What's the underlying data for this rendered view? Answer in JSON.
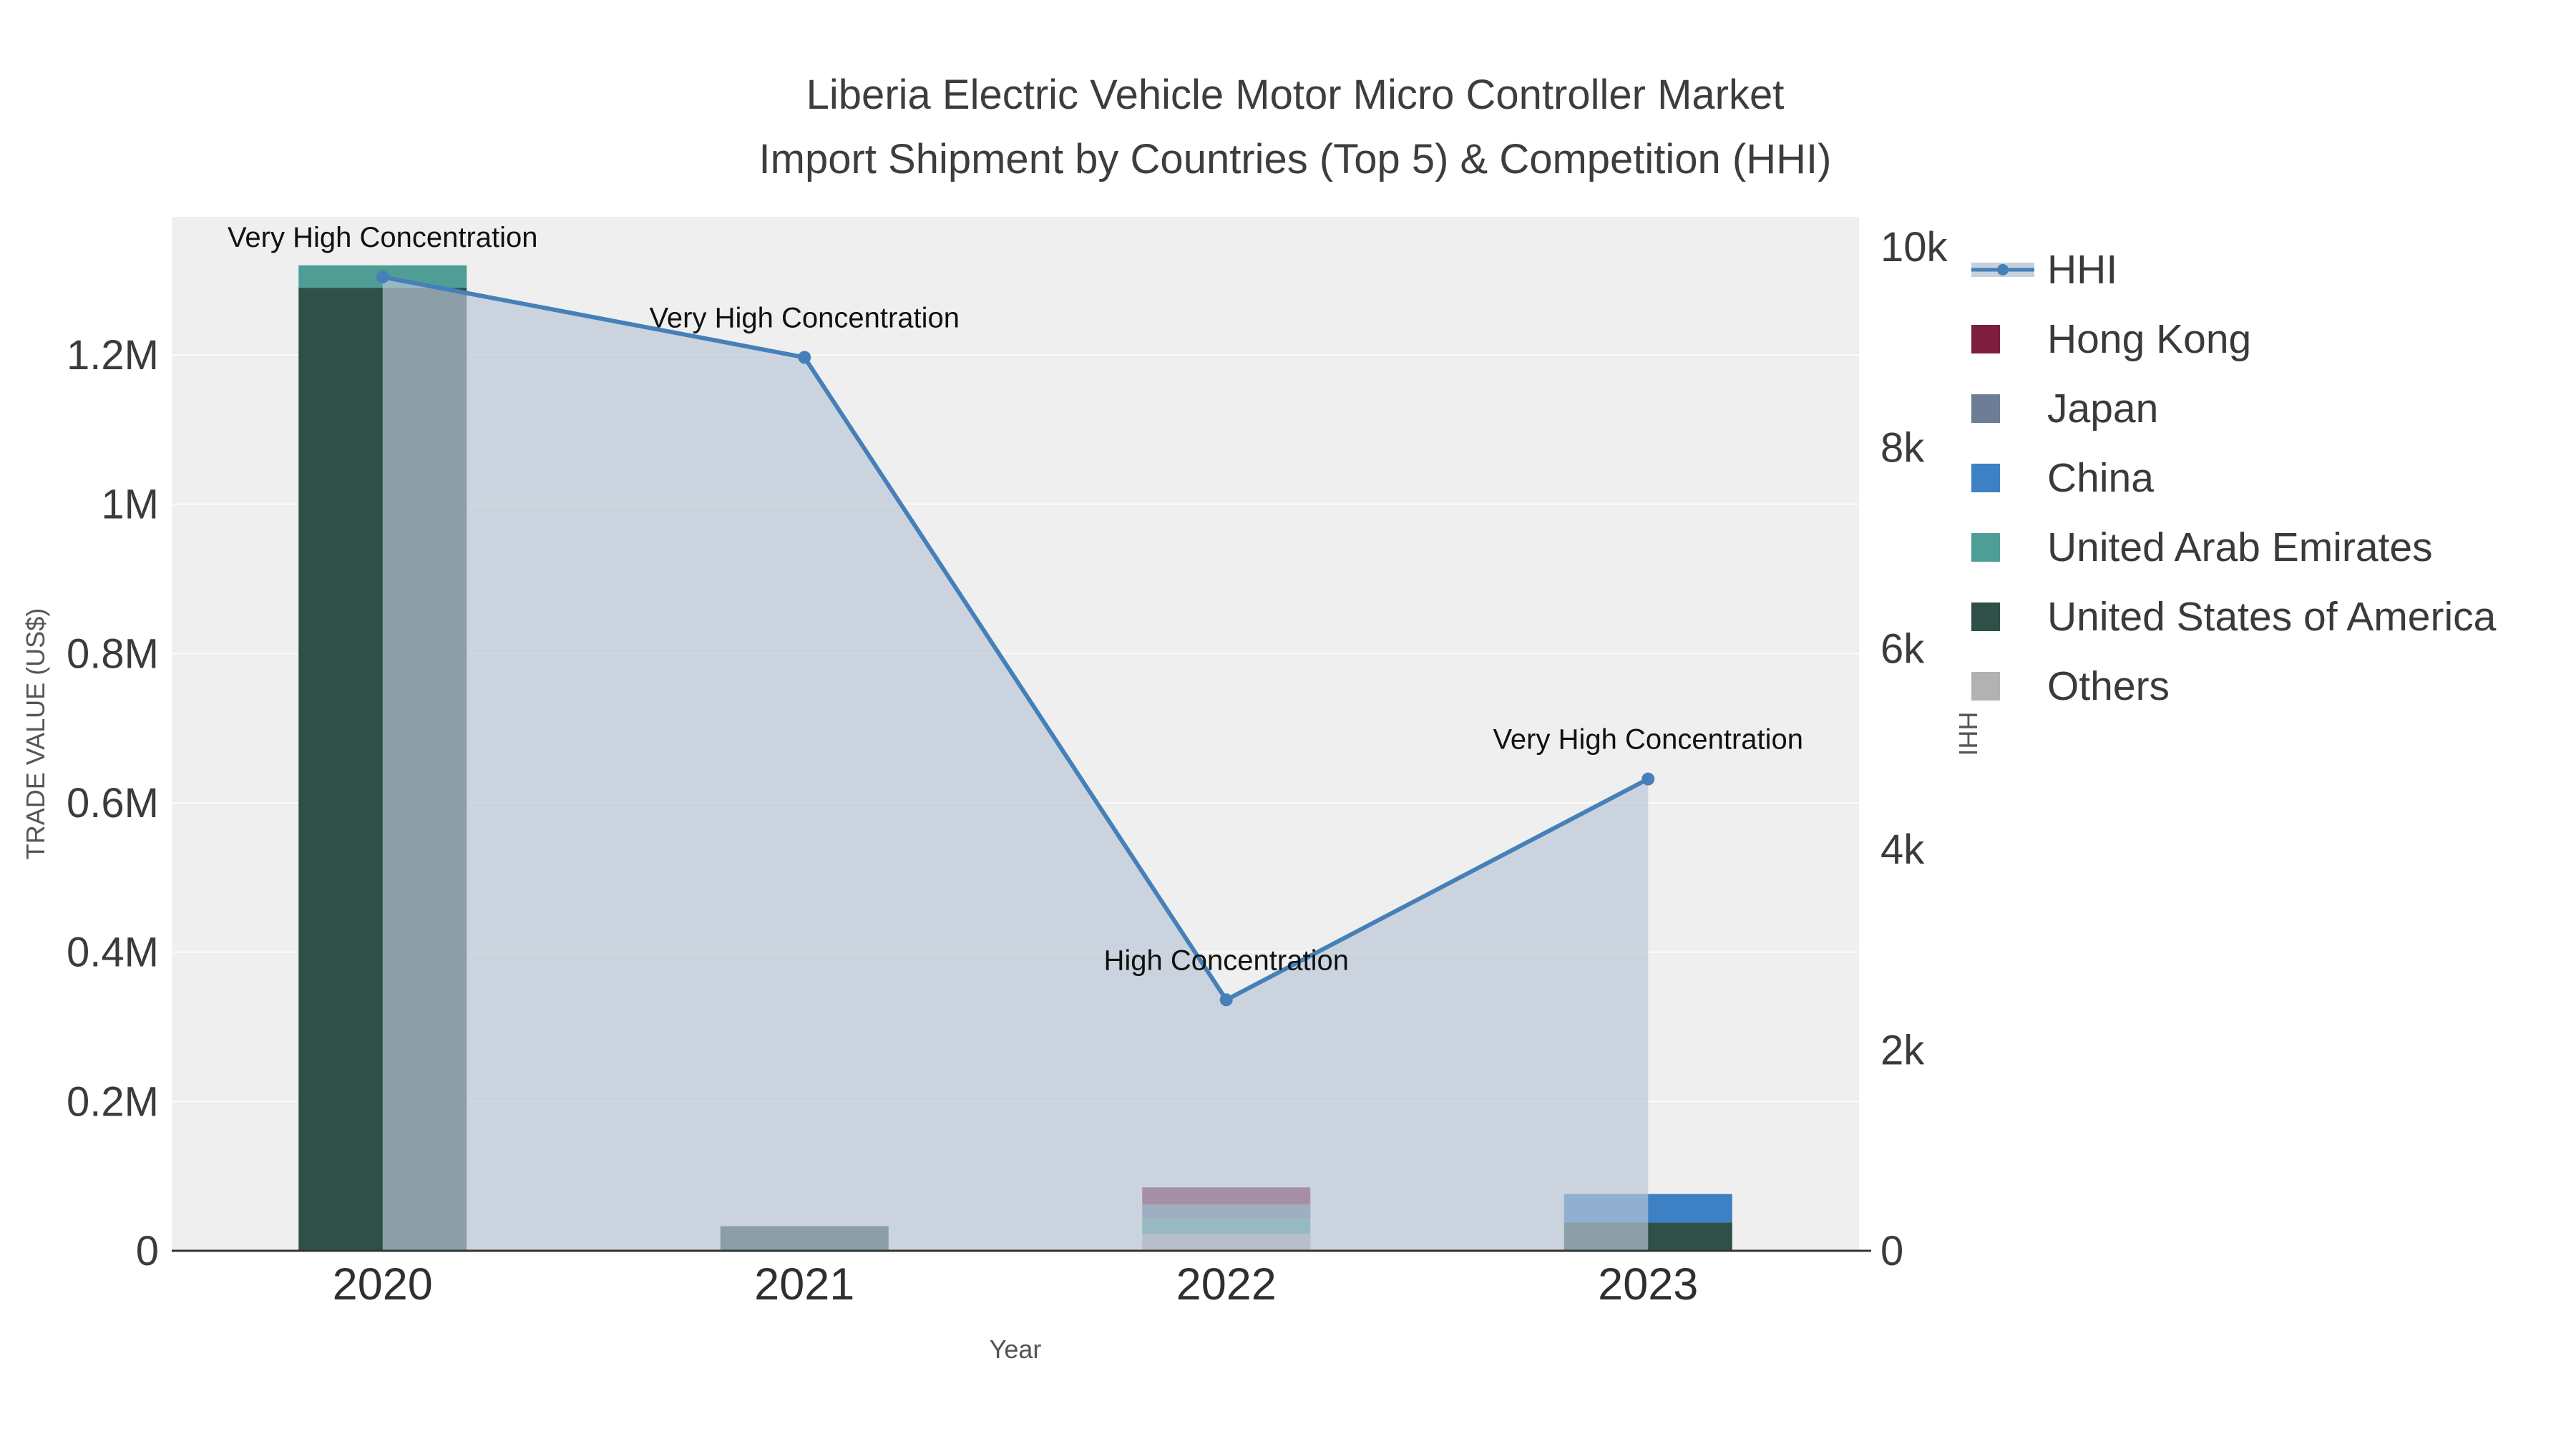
{
  "title": {
    "line1": "Liberia Electric Vehicle Motor Micro Controller Market",
    "line2": "Import Shipment by Countries (Top 5) & Competition (HHI)"
  },
  "chart_data": {
    "type": "bar+line",
    "title": "Liberia Electric Vehicle Motor Micro Controller Market Import Shipment by Countries (Top 5) & Competition (HHI)",
    "xlabel": "Year",
    "ylabel_left": "TRADE VALUE (US$)",
    "ylabel_right": "HHI",
    "categories": [
      "2020",
      "2021",
      "2022",
      "2023"
    ],
    "y_left_ticks": [
      "0",
      "0.2M",
      "0.4M",
      "0.6M",
      "0.8M",
      "1M",
      "1.2M"
    ],
    "y_left_tick_values": [
      0,
      200000,
      400000,
      600000,
      800000,
      1000000,
      1200000
    ],
    "y_left_max": 1385000,
    "y_right_ticks": [
      "0",
      "2k",
      "4k",
      "6k",
      "8k",
      "10k"
    ],
    "y_right_tick_values": [
      0,
      2000,
      4000,
      6000,
      8000,
      10000
    ],
    "y_right_max": 10300,
    "bar_series": [
      {
        "name": "Others",
        "color": "#b2b2b2",
        "values": [
          0,
          0,
          23000,
          0
        ]
      },
      {
        "name": "United States of America",
        "color": "#2e5049",
        "values": [
          1290000,
          33000,
          0,
          38000
        ]
      },
      {
        "name": "United Arab Emirates",
        "color": "#4f9e96",
        "values": [
          30000,
          0,
          21000,
          0
        ]
      },
      {
        "name": "China",
        "color": "#3d80c4",
        "values": [
          0,
          0,
          0,
          38000
        ]
      },
      {
        "name": "Japan",
        "color": "#6c7d95",
        "values": [
          0,
          0,
          18000,
          0
        ]
      },
      {
        "name": "Hong Kong",
        "color": "#7e1e3e",
        "values": [
          0,
          0,
          23000,
          0
        ]
      }
    ],
    "line_series": {
      "name": "HHI",
      "color": "#4580b8",
      "area_color": "rgba(185,197,213,0.68)",
      "values": [
        9700,
        8900,
        2500,
        4700
      ]
    },
    "annotations": [
      {
        "x": "2020",
        "text": "Very High Concentration"
      },
      {
        "x": "2021",
        "text": "Very High Concentration"
      },
      {
        "x": "2022",
        "text": "High Concentration"
      },
      {
        "x": "2023",
        "text": "Very High Concentration"
      }
    ],
    "legend": [
      {
        "label": "HHI",
        "type": "line",
        "color": "#4580b8",
        "area_color": "rgba(185,197,213,0.8)"
      },
      {
        "label": "Hong Kong",
        "type": "square",
        "color": "#7e1e3e"
      },
      {
        "label": "Japan",
        "type": "square",
        "color": "#6c7d95"
      },
      {
        "label": "China",
        "type": "square",
        "color": "#3d80c4"
      },
      {
        "label": "United Arab Emirates",
        "type": "square",
        "color": "#4f9e96"
      },
      {
        "label": "United States of America",
        "type": "square",
        "color": "#2e5049"
      },
      {
        "label": "Others",
        "type": "square",
        "color": "#b2b2b2"
      }
    ],
    "styles": {
      "plot_bg": "#efefef",
      "grid_color": "#ffffff",
      "axis_line_color": "#333333",
      "tick_color": "#3b3b3b",
      "annotation_color": "#111111",
      "axis_title_color": "#555555"
    }
  }
}
